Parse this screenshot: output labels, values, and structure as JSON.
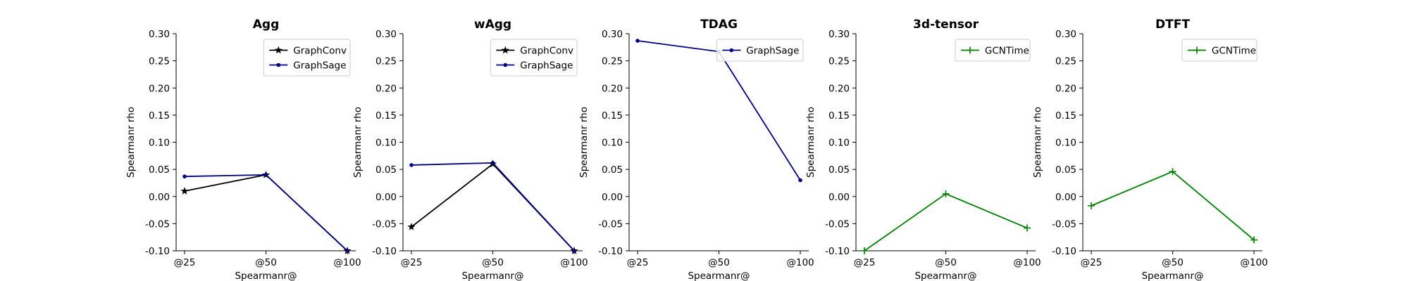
{
  "chart_data": [
    {
      "type": "line",
      "title": "Agg",
      "xlabel": "Spearmanr@",
      "ylabel": "Spearmanr rho",
      "categories": [
        "@25",
        "@50",
        "@100"
      ],
      "ylim": [
        -0.1,
        0.3
      ],
      "yticks": [
        "-0.10",
        "-0.05",
        "0.00",
        "0.05",
        "0.10",
        "0.15",
        "0.20",
        "0.25",
        "0.30"
      ],
      "grid": false,
      "legend": "top-right",
      "series": [
        {
          "name": "GraphConv",
          "values": [
            0.01,
            0.04,
            -0.1
          ],
          "color": "#000000",
          "marker": "star"
        },
        {
          "name": "GraphSage",
          "values": [
            0.037,
            0.04,
            -0.1
          ],
          "color": "#000080",
          "marker": "dot"
        }
      ]
    },
    {
      "type": "line",
      "title": "wAgg",
      "xlabel": "Spearmanr@",
      "ylabel": "Spearmanr rho",
      "categories": [
        "@25",
        "@50",
        "@100"
      ],
      "ylim": [
        -0.1,
        0.3
      ],
      "yticks": [
        "-0.10",
        "-0.05",
        "0.00",
        "0.05",
        "0.10",
        "0.15",
        "0.20",
        "0.25",
        "0.30"
      ],
      "grid": false,
      "legend": "top-right",
      "series": [
        {
          "name": "GraphConv",
          "values": [
            -0.056,
            0.06,
            -0.1
          ],
          "color": "#000000",
          "marker": "star"
        },
        {
          "name": "GraphSage",
          "values": [
            0.058,
            0.062,
            -0.1
          ],
          "color": "#000080",
          "marker": "dot"
        }
      ]
    },
    {
      "type": "line",
      "title": "TDAG",
      "xlabel": "Spearmanr@",
      "ylabel": "Spearmanr rho",
      "categories": [
        "@25",
        "@50",
        "@100"
      ],
      "ylim": [
        -0.1,
        0.3
      ],
      "yticks": [
        "-0.10",
        "-0.05",
        "0.00",
        "0.05",
        "0.10",
        "0.15",
        "0.20",
        "0.25",
        "0.30"
      ],
      "grid": false,
      "legend": "top-right",
      "series": [
        {
          "name": "GraphSage",
          "values": [
            0.287,
            0.267,
            0.03
          ],
          "color": "#000080",
          "marker": "dot"
        }
      ]
    },
    {
      "type": "line",
      "title": "3d-tensor",
      "xlabel": "Spearmanr@",
      "ylabel": "Spearmanr rho",
      "categories": [
        "@25",
        "@50",
        "@100"
      ],
      "ylim": [
        -0.1,
        0.3
      ],
      "yticks": [
        "-0.10",
        "-0.05",
        "0.00",
        "0.05",
        "0.10",
        "0.15",
        "0.20",
        "0.25",
        "0.30"
      ],
      "grid": false,
      "legend": "top-right",
      "series": [
        {
          "name": "GCNTime",
          "values": [
            -0.1,
            0.005,
            -0.058
          ],
          "color": "#008000",
          "marker": "plus"
        }
      ]
    },
    {
      "type": "line",
      "title": "DTFT",
      "xlabel": "Spearmanr@",
      "ylabel": "Spearmanr rho",
      "categories": [
        "@25",
        "@50",
        "@100"
      ],
      "ylim": [
        -0.1,
        0.3
      ],
      "yticks": [
        "-0.10",
        "-0.05",
        "0.00",
        "0.05",
        "0.10",
        "0.15",
        "0.20",
        "0.25",
        "0.30"
      ],
      "grid": false,
      "legend": "top-right",
      "series": [
        {
          "name": "GCNTime",
          "values": [
            -0.017,
            0.046,
            -0.08
          ],
          "color": "#008000",
          "marker": "plus"
        }
      ]
    }
  ]
}
